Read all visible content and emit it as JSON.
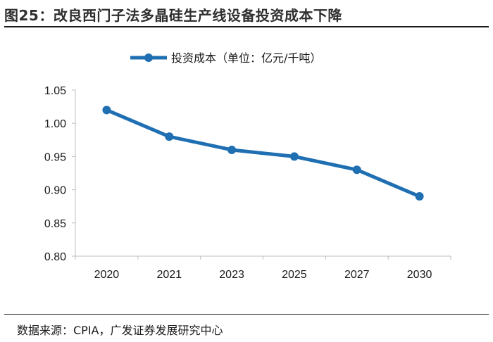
{
  "figure": {
    "title": "图25：改良西门子法多晶硅生产线设备投资成本下降",
    "source": "数据来源：CPIA，广发证券发展研究中心"
  },
  "colors": {
    "series": "#1f6fb2",
    "axis": "#bfbfbf",
    "text": "#1a1a1a"
  },
  "chart_data": {
    "type": "line",
    "title": "",
    "categories": [
      "2020",
      "2021",
      "2023",
      "2025",
      "2027",
      "2030"
    ],
    "series": [
      {
        "name": "投资成本（单位：亿元/千吨）",
        "values": [
          1.02,
          0.98,
          0.96,
          0.95,
          0.93,
          0.89
        ]
      }
    ],
    "ylim": [
      0.8,
      1.05
    ],
    "yticks": [
      "0.80",
      "0.85",
      "0.90",
      "0.95",
      "1.00",
      "1.05"
    ],
    "xlabel": "",
    "ylabel": "",
    "legend_position": "top",
    "grid": false
  }
}
